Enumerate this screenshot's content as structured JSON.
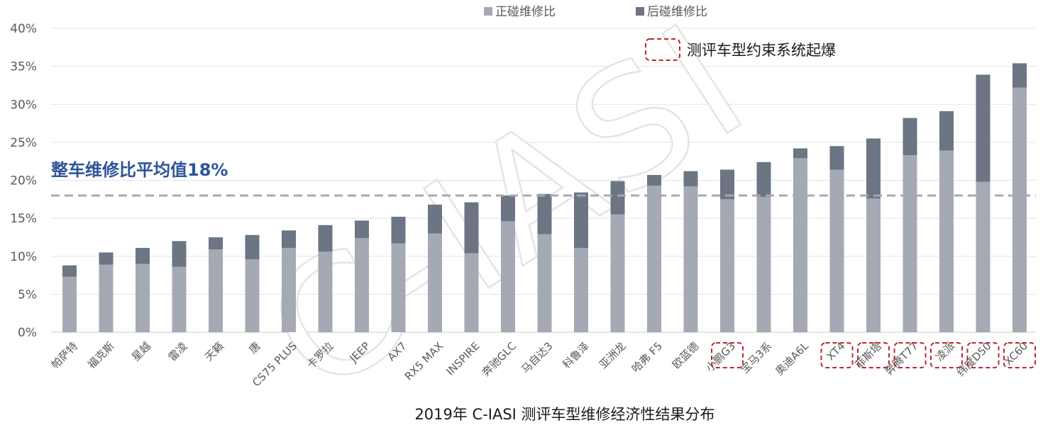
{
  "chart_data": {
    "type": "bar",
    "stacked": true,
    "title": "2019年 C-IASI 测评车型维修经济性结果分布",
    "watermark": "C-IASI",
    "categories": [
      "帕萨特",
      "福克斯",
      "星越",
      "雷凌",
      "天籁",
      "唐",
      "CS75 PLUS",
      "卡罗拉",
      "JEEP",
      "AX7",
      "RX5 MAX",
      "INSPIRE",
      "奔驰GLC",
      "马自达3",
      "科鲁泽",
      "亚洲龙",
      "哈弗 F5",
      "欧蓝德",
      "小鹏G3",
      "宝马3系",
      "奥迪A6L",
      "XT4",
      "菲斯塔",
      "奔腾T77",
      "凌派",
      "纬度D50",
      "XC60"
    ],
    "series": [
      {
        "name": "正碰维修比",
        "color": "#a5a9b3",
        "values": [
          7.3,
          8.9,
          9.0,
          8.6,
          10.9,
          9.6,
          11.1,
          10.6,
          12.4,
          11.7,
          13.0,
          10.4,
          14.6,
          12.9,
          11.1,
          15.5,
          19.3,
          19.2,
          17.5,
          17.8,
          22.9,
          21.4,
          17.6,
          23.3,
          23.9,
          19.8,
          32.2
        ]
      },
      {
        "name": "后碰维修比",
        "color": "#6b7584",
        "values": [
          1.5,
          1.6,
          2.1,
          3.4,
          1.6,
          3.2,
          2.3,
          3.5,
          2.3,
          3.5,
          3.8,
          6.7,
          3.4,
          5.3,
          7.3,
          4.4,
          1.4,
          2.0,
          3.9,
          4.6,
          1.3,
          3.1,
          7.9,
          4.9,
          5.2,
          14.1,
          3.2
        ]
      }
    ],
    "ylim": [
      0,
      40
    ],
    "yticks": [
      "0%",
      "5%",
      "10%",
      "15%",
      "20%",
      "25%",
      "30%",
      "35%",
      "40%"
    ],
    "ytick_values": [
      0,
      5,
      10,
      15,
      20,
      25,
      30,
      35,
      40
    ],
    "grid": true,
    "legend_position": "top",
    "average_line": {
      "value": 18,
      "label": "整车维修比平均值18%",
      "color": "#a5a9b3"
    },
    "highlight_note": "测评车型约束系统起爆",
    "highlight_color": "#c0262d",
    "highlighted_categories": [
      "小鹏G3",
      "XT4",
      "菲斯塔",
      "奔腾T77",
      "凌派",
      "纬度D50",
      "XC60"
    ]
  }
}
